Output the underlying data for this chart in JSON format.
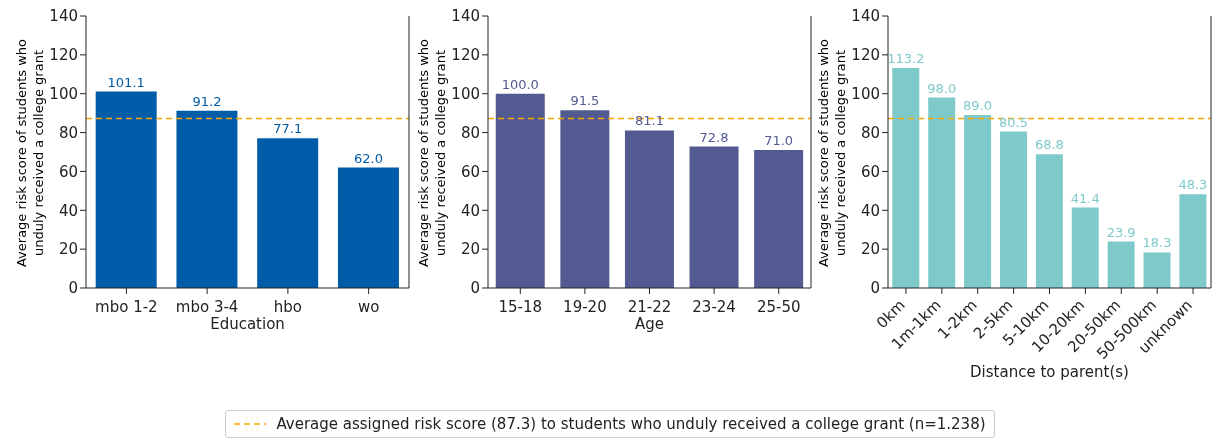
{
  "chart_data": [
    {
      "type": "bar",
      "categories": [
        "mbo 1-2",
        "mbo 3-4",
        "hbo",
        "wo"
      ],
      "values": [
        101.1,
        91.2,
        77.1,
        62
      ],
      "value_labels": [
        "101.1",
        "91.2",
        "77.1",
        "62.0"
      ],
      "color": "#005ba8",
      "xlabel": "Education",
      "ylabel": "Average risk score of students who unduly received a college grant",
      "ylim": [
        0,
        140
      ],
      "yticks": [
        0,
        20,
        40,
        60,
        80,
        100,
        120,
        140
      ],
      "legend": "bottom",
      "ref_lines": [
        {
          "axis": "y",
          "value": 87.3,
          "label": "Average assigned risk score (87.3) to students who unduly received a college grant (n=1.238)",
          "color": "#ffa500",
          "line_style": "dashed"
        }
      ]
    },
    {
      "type": "bar",
      "categories": [
        "15-18",
        "19-20",
        "21-22",
        "23-24",
        "25-50"
      ],
      "values": [
        100,
        91.5,
        81.1,
        72.8,
        71
      ],
      "value_labels": [
        "100.0",
        "91.5",
        "81.1",
        "72.8",
        "71.0"
      ],
      "color": "#525a91",
      "xlabel": "Age",
      "ylabel": "Average risk score of students who unduly received a college grant",
      "ylim": [
        0,
        140
      ],
      "yticks": [
        0,
        20,
        40,
        60,
        80,
        100,
        120,
        140
      ],
      "ref_lines": [
        {
          "axis": "y",
          "value": 87.3,
          "color": "#ffa500",
          "line_style": "dashed"
        }
      ]
    },
    {
      "type": "bar",
      "categories": [
        "0km",
        "1m-1km",
        "1-2km",
        "2-5km",
        "5-10km",
        "10-20km",
        "20-50km",
        "50-500km",
        "unknown"
      ],
      "values": [
        113.2,
        98,
        89,
        80.5,
        68.8,
        41.4,
        23.9,
        18.3,
        48.3
      ],
      "value_labels": [
        "113.2",
        "98.0",
        "89.0",
        "80.5",
        "68.8",
        "41.4",
        "23.9",
        "18.3",
        "48.3"
      ],
      "color": "#7ecacb",
      "xlabel": "Distance to parent(s)",
      "ylabel": "Average risk score of students who unduly received a college grant",
      "ylim": [
        0,
        140
      ],
      "yticks": [
        0,
        20,
        40,
        60,
        80,
        100,
        120,
        140
      ],
      "ref_lines": [
        {
          "axis": "y",
          "value": 87.3,
          "color": "#ffa500",
          "line_style": "dashed"
        }
      ]
    }
  ]
}
